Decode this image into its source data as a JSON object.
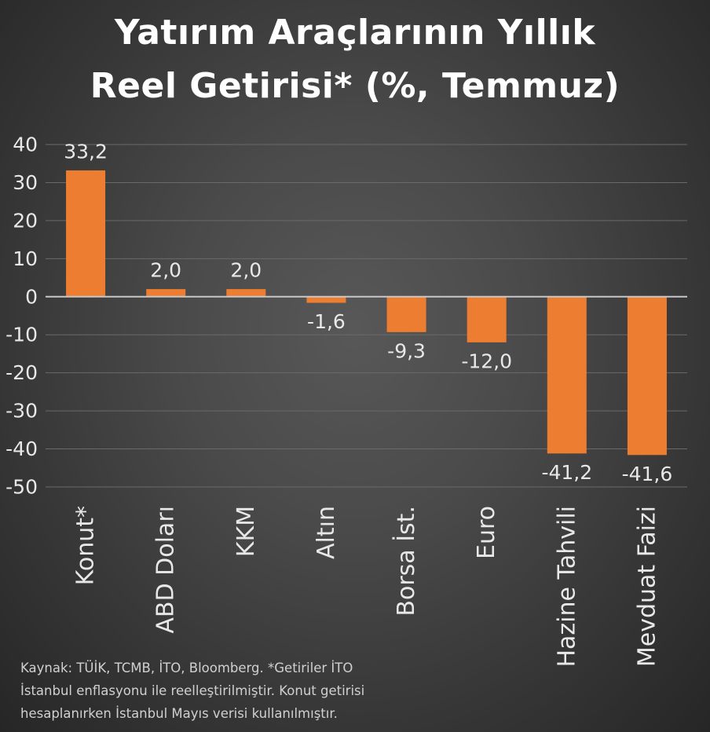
{
  "chart_data": {
    "type": "bar",
    "title_lines": [
      "Yatırım Araçlarının Yıllık",
      "Reel Getirisi* (%, Temmuz)"
    ],
    "xlabel": "",
    "ylabel": "",
    "ylim": [
      -50,
      40
    ],
    "yticks": [
      40,
      30,
      20,
      10,
      0,
      -10,
      -20,
      -30,
      -40,
      -50
    ],
    "ytick_labels": [
      "40",
      "30",
      "20",
      "10",
      "0",
      "-10",
      "-20",
      "-30",
      "-40",
      "-50"
    ],
    "categories": [
      "Konut*",
      "ABD Doları",
      "KKM",
      "Altın",
      "Borsa İst.",
      "Euro",
      "Hazine Tahvili",
      "Mevduat Faizi"
    ],
    "values": [
      33.2,
      2.0,
      2.0,
      -1.6,
      -9.3,
      -12.0,
      -41.2,
      -41.6
    ],
    "data_labels": [
      "33,2",
      "2,0",
      "2,0",
      "-1,6",
      "-9,3",
      "-12,0",
      "-41,2",
      "-41,6"
    ],
    "grid": true,
    "bar_color": "#ed7d31",
    "text_color": "#e8e8e8",
    "grid_color": "#6a6a6a",
    "zero_line_color": "#c8c8c8"
  },
  "footnote": "Kaynak: TÜİK, TCMB, İTO, Bloomberg. *Getiriler İTO\nİstanbul enflasyonu ile reelleştirilmiştir. Konut getirisi\nhesaplanırken İstanbul Mayıs verisi kullanılmıştır."
}
